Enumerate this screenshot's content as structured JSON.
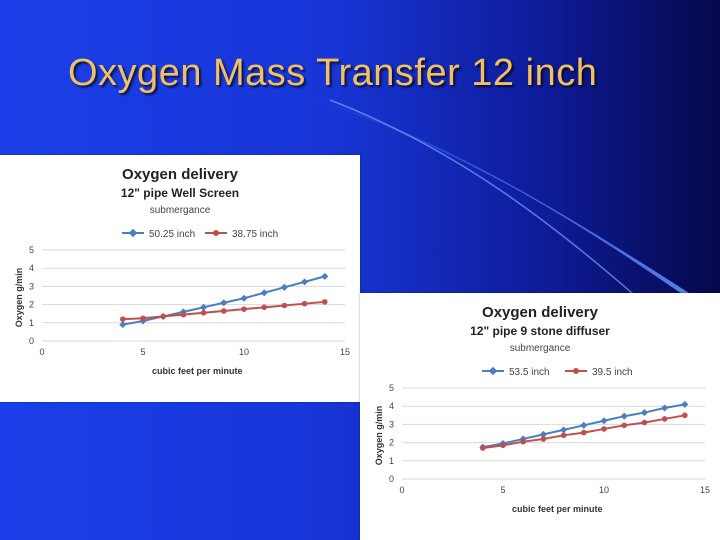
{
  "slide": {
    "title": "Oxygen Mass Transfer 12 inch"
  },
  "colors": {
    "series_blue": "#4a7ec2",
    "series_red": "#c0504d",
    "title_gold": "#f2c060"
  },
  "chart_data": [
    {
      "type": "line",
      "title": "Oxygen delivery",
      "subtitle": "12\" pipe Well Screen",
      "legend_title": "submergance",
      "xlabel": "cubic feet per minute",
      "ylabel": "Oxygen g/min",
      "xlim": [
        0,
        15
      ],
      "ylim": [
        0,
        5
      ],
      "x_ticks": [
        "0",
        "5",
        "10",
        "15"
      ],
      "y_ticks": [
        "0",
        "1",
        "2",
        "3",
        "4",
        "5"
      ],
      "grid": true,
      "legend_position": "top",
      "x": [
        4,
        5,
        6,
        7,
        8,
        9,
        10,
        11,
        12,
        13,
        14
      ],
      "series": [
        {
          "name": "50.25 inch",
          "color": "#4a7ec2",
          "values": [
            0.9,
            1.1,
            1.35,
            1.6,
            1.85,
            2.1,
            2.35,
            2.65,
            2.95,
            3.25,
            3.55
          ]
        },
        {
          "name": "38.75 inch",
          "color": "#c0504d",
          "values": [
            1.2,
            1.25,
            1.35,
            1.45,
            1.55,
            1.65,
            1.75,
            1.85,
            1.95,
            2.05,
            2.15
          ]
        }
      ]
    },
    {
      "type": "line",
      "title": "Oxygen delivery",
      "subtitle": "12\" pipe 9 stone diffuser",
      "legend_title": "submergance",
      "xlabel": "cubic feet per minute",
      "ylabel": "Oxygen g/min",
      "xlim": [
        0,
        15
      ],
      "ylim": [
        0,
        5
      ],
      "x_ticks": [
        "0",
        "5",
        "10",
        "15"
      ],
      "y_ticks": [
        "0",
        "1",
        "2",
        "3",
        "4",
        "5"
      ],
      "grid": true,
      "legend_position": "top",
      "x": [
        4,
        5,
        6,
        7,
        8,
        9,
        10,
        11,
        12,
        13,
        14
      ],
      "series": [
        {
          "name": "53.5 inch",
          "color": "#4a7ec2",
          "values": [
            1.75,
            1.95,
            2.2,
            2.45,
            2.7,
            2.95,
            3.2,
            3.45,
            3.65,
            3.9,
            4.1
          ]
        },
        {
          "name": "39.5 inch",
          "color": "#c0504d",
          "values": [
            1.7,
            1.85,
            2.05,
            2.2,
            2.4,
            2.55,
            2.75,
            2.95,
            3.1,
            3.3,
            3.5
          ]
        }
      ]
    }
  ]
}
